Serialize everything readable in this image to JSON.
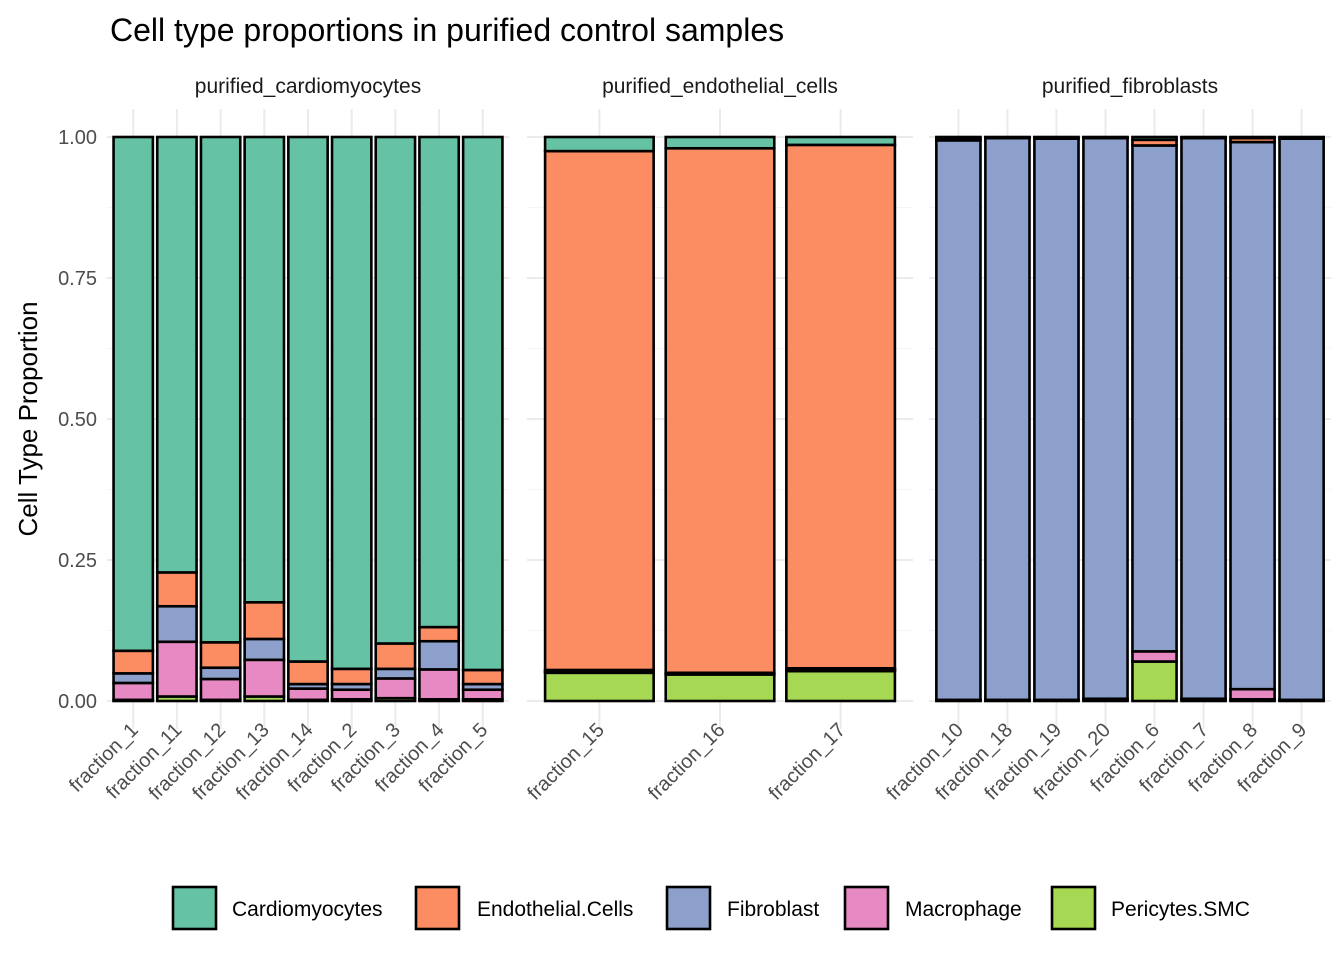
{
  "chart_data": {
    "type": "bar",
    "stacked": true,
    "title": "Cell type proportions in purified control samples",
    "ylabel": "Cell Type Proportion",
    "xlabel": "",
    "ylim": [
      0,
      1
    ],
    "yticks": [
      "0.00",
      "0.25",
      "0.50",
      "0.75",
      "1.00"
    ],
    "ytick_values": [
      0,
      0.25,
      0.5,
      0.75,
      1
    ],
    "grid": true,
    "legend_position": "bottom",
    "legend": [
      {
        "name": "Cardiomyocytes",
        "color": "#66c2a5"
      },
      {
        "name": "Endothelial.Cells",
        "color": "#fc8d62"
      },
      {
        "name": "Fibroblast",
        "color": "#8da0cb"
      },
      {
        "name": "Macrophage",
        "color": "#e78ac3"
      },
      {
        "name": "Pericytes.SMC",
        "color": "#a6d854"
      }
    ],
    "stack_order_bottom_to_top": [
      "Pericytes.SMC",
      "Macrophage",
      "Fibroblast",
      "Endothelial.Cells",
      "Cardiomyocytes"
    ],
    "facets": [
      {
        "label": "purified_cardiomyocytes",
        "categories": [
          "fraction_1",
          "fraction_11",
          "fraction_12",
          "fraction_13",
          "fraction_14",
          "fraction_2",
          "fraction_3",
          "fraction_4",
          "fraction_5"
        ],
        "series": [
          {
            "name": "Pericytes.SMC",
            "values": [
              0.002,
              0.008,
              0.002,
              0.008,
              0.002,
              0.003,
              0.005,
              0.003,
              0.003
            ]
          },
          {
            "name": "Macrophage",
            "values": [
              0.03,
              0.097,
              0.037,
              0.065,
              0.02,
              0.017,
              0.035,
              0.053,
              0.017
            ]
          },
          {
            "name": "Fibroblast",
            "values": [
              0.017,
              0.063,
              0.02,
              0.037,
              0.008,
              0.01,
              0.017,
              0.05,
              0.01
            ]
          },
          {
            "name": "Endothelial.Cells",
            "values": [
              0.04,
              0.06,
              0.045,
              0.065,
              0.04,
              0.027,
              0.045,
              0.025,
              0.025
            ]
          },
          {
            "name": "Cardiomyocytes",
            "values": [
              0.911,
              0.772,
              0.896,
              0.825,
              0.93,
              0.943,
              0.898,
              0.869,
              0.945
            ]
          }
        ]
      },
      {
        "label": "purified_endothelial_cells",
        "categories": [
          "fraction_15",
          "fraction_16",
          "fraction_17"
        ],
        "series": [
          {
            "name": "Pericytes.SMC",
            "values": [
              0.05,
              0.047,
              0.053
            ]
          },
          {
            "name": "Macrophage",
            "values": [
              0.002,
              0.001,
              0.002
            ]
          },
          {
            "name": "Fibroblast",
            "values": [
              0.003,
              0.002,
              0.003
            ]
          },
          {
            "name": "Endothelial.Cells",
            "values": [
              0.92,
              0.93,
              0.928
            ]
          },
          {
            "name": "Cardiomyocytes",
            "values": [
              0.025,
              0.02,
              0.014
            ]
          }
        ]
      },
      {
        "label": "purified_fibroblasts",
        "categories": [
          "fraction_10",
          "fraction_18",
          "fraction_19",
          "fraction_20",
          "fraction_6",
          "fraction_7",
          "fraction_8",
          "fraction_9"
        ],
        "series": [
          {
            "name": "Pericytes.SMC",
            "values": [
              0.001,
              0.001,
              0.001,
              0.003,
              0.07,
              0.003,
              0.003,
              0.001
            ]
          },
          {
            "name": "Macrophage",
            "values": [
              0.001,
              0.001,
              0.001,
              0.001,
              0.018,
              0.001,
              0.018,
              0.001
            ]
          },
          {
            "name": "Fibroblast",
            "values": [
              0.992,
              0.996,
              0.995,
              0.994,
              0.897,
              0.994,
              0.97,
              0.995
            ]
          },
          {
            "name": "Endothelial.Cells",
            "values": [
              0.003,
              0.001,
              0.001,
              0.001,
              0.01,
              0.001,
              0.007,
              0.001
            ]
          },
          {
            "name": "Cardiomyocytes",
            "values": [
              0.003,
              0.001,
              0.002,
              0.001,
              0.005,
              0.001,
              0.002,
              0.002
            ]
          }
        ]
      }
    ]
  }
}
